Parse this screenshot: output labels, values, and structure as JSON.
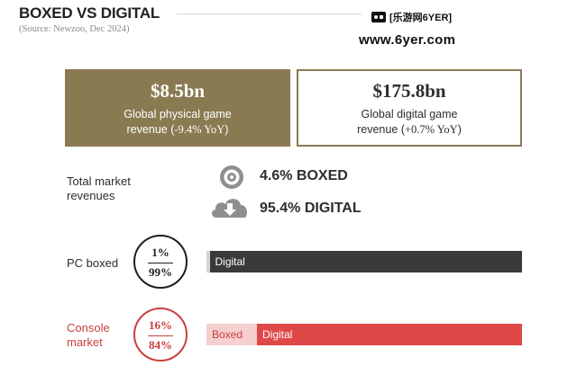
{
  "header": {
    "title": "BOXED VS DIGITAL",
    "source": "(Source: Newzoo, Dec 2024)"
  },
  "watermark": {
    "top_text": "[乐游网6YER]",
    "bottom_text": "www.6yer.com"
  },
  "revenue_boxes": {
    "physical": {
      "value": "$8.5bn",
      "line1": "Global physical game",
      "line2_prefix": "revenue (",
      "change": "-9.4% YoY",
      "line2_suffix": ")"
    },
    "digital": {
      "value": "$175.8bn",
      "line1": "Global digital game",
      "line2_prefix": "revenue (",
      "change": "+0.7% YoY",
      "line2_suffix": ")"
    }
  },
  "total_market": {
    "label_line1": "Total market",
    "label_line2": "revenues",
    "boxed_text": "4.6% BOXED",
    "digital_text": "95.4% DIGITAL",
    "boxed_icon": "disc-icon",
    "digital_icon": "cloud-download-icon"
  },
  "platforms": {
    "pc": {
      "label": "PC boxed",
      "boxed_pct_text": "1%",
      "digital_pct_text": "99%",
      "digital_label": "Digital"
    },
    "console": {
      "label_line1": "Console",
      "label_line2": "market",
      "boxed_pct_text": "16%",
      "digital_pct_text": "84%",
      "boxed_label": "Boxed",
      "digital_label": "Digital"
    }
  },
  "colors": {
    "gold": "#8a7a52",
    "dark": "#3a3b39",
    "red": "#e04848",
    "red_text": "#c8403d",
    "pink": "#f6cfcf",
    "light_gray": "#d5d5d5",
    "icon_gray": "#8f8f8f"
  },
  "chart_data": [
    {
      "type": "bar",
      "title": "",
      "categories": [
        "Global physical game revenue",
        "Global digital game revenue"
      ],
      "values": [
        8.5,
        175.8
      ],
      "unit": "$bn",
      "yoy_change_percent": [
        -9.4,
        0.7
      ]
    },
    {
      "type": "bar",
      "orientation": "horizontal-stacked",
      "categories": [
        "Total market revenues",
        "PC boxed",
        "Console market"
      ],
      "series": [
        {
          "name": "Boxed",
          "values": [
            4.6,
            1,
            16
          ]
        },
        {
          "name": "Digital",
          "values": [
            95.4,
            99,
            84
          ]
        }
      ],
      "unit": "%"
    }
  ]
}
